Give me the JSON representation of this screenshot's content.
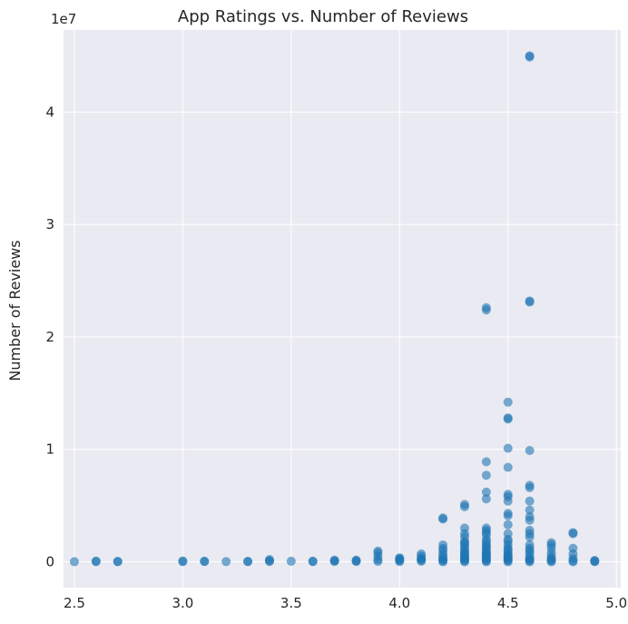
{
  "chart_data": {
    "type": "scatter",
    "title": "App Ratings vs. Number of Reviews",
    "xlabel": "",
    "ylabel": "Number of Reviews",
    "y_offset_label": "1e7",
    "xlim": [
      2.45,
      5.02
    ],
    "ylim": [
      -2300000,
      47300000
    ],
    "xticks": [
      2.5,
      3.0,
      3.5,
      4.0,
      4.5,
      5.0
    ],
    "xtick_labels": [
      "2.5",
      "3.0",
      "3.5",
      "4.0",
      "4.5",
      "5.0"
    ],
    "yticks": [
      0,
      10000000,
      20000000,
      30000000,
      40000000
    ],
    "ytick_labels": [
      "0",
      "1",
      "2",
      "3",
      "4"
    ],
    "grid": true,
    "background": "#eaeaf2",
    "grid_color": "#ffffff",
    "point_color": "#1f77b4",
    "point_alpha": 0.6,
    "series": [
      {
        "x": [
          2.5,
          2.6,
          2.6,
          2.7,
          2.7,
          3.0,
          3.0,
          3.1,
          3.1,
          3.2,
          3.3,
          3.3,
          3.4,
          3.4,
          3.4,
          3.5,
          3.6,
          3.6,
          3.7,
          3.7,
          3.7,
          3.8,
          3.8,
          3.8,
          3.9,
          3.9,
          3.9,
          3.9,
          3.9,
          4.0,
          4.0,
          4.0,
          4.0,
          4.0,
          4.1,
          4.1,
          4.1,
          4.1,
          4.1,
          4.1,
          4.2,
          4.2,
          4.2,
          4.2,
          4.2,
          4.2,
          4.2,
          4.2,
          4.2,
          4.2,
          4.2,
          4.3,
          4.3,
          4.3,
          4.3,
          4.3,
          4.3,
          4.3,
          4.3,
          4.3,
          4.3,
          4.3,
          4.3,
          4.3,
          4.3,
          4.3,
          4.3,
          4.3,
          4.3,
          4.3,
          4.4,
          4.4,
          4.4,
          4.4,
          4.4,
          4.4,
          4.4,
          4.4,
          4.4,
          4.4,
          4.4,
          4.4,
          4.4,
          4.4,
          4.4,
          4.4,
          4.4,
          4.4,
          4.4,
          4.4,
          4.4,
          4.4,
          4.4,
          4.4,
          4.4,
          4.4,
          4.5,
          4.5,
          4.5,
          4.5,
          4.5,
          4.5,
          4.5,
          4.5,
          4.5,
          4.5,
          4.5,
          4.5,
          4.5,
          4.5,
          4.5,
          4.5,
          4.5,
          4.5,
          4.5,
          4.5,
          4.5,
          4.5,
          4.5,
          4.5,
          4.5,
          4.5,
          4.6,
          4.6,
          4.6,
          4.6,
          4.6,
          4.6,
          4.6,
          4.6,
          4.6,
          4.6,
          4.6,
          4.6,
          4.6,
          4.6,
          4.6,
          4.6,
          4.6,
          4.6,
          4.6,
          4.6,
          4.6,
          4.6,
          4.6,
          4.7,
          4.7,
          4.7,
          4.7,
          4.7,
          4.7,
          4.7,
          4.7,
          4.7,
          4.8,
          4.8,
          4.8,
          4.8,
          4.8,
          4.8,
          4.8,
          4.9,
          4.9,
          4.9
        ],
        "y": [
          10000,
          20000,
          60000,
          10000,
          40000,
          20000,
          70000,
          30000,
          50000,
          20000,
          20000,
          40000,
          30000,
          100000,
          200000,
          50000,
          20000,
          60000,
          50000,
          150000,
          60000,
          30000,
          80000,
          150000,
          40000,
          200000,
          500000,
          800000,
          950000,
          30000,
          100000,
          200000,
          300000,
          350000,
          50000,
          150000,
          300000,
          500000,
          700000,
          250000,
          0,
          100000,
          200000,
          300000,
          500000,
          700000,
          1000000,
          1200000,
          1500000,
          3800000,
          3900000,
          0,
          100000,
          200000,
          300000,
          500000,
          700000,
          900000,
          1100000,
          1300000,
          1500000,
          1800000,
          2200000,
          2500000,
          3000000,
          4900000,
          5100000,
          1700000,
          800000,
          400000,
          0,
          100000,
          200000,
          300000,
          500000,
          700000,
          900000,
          1100000,
          1300000,
          1600000,
          2000000,
          2400000,
          2800000,
          3000000,
          5600000,
          6200000,
          7700000,
          8900000,
          22400000,
          22600000,
          600000,
          1400000,
          1800000,
          2600000,
          400000,
          800000,
          0,
          100000,
          200000,
          300000,
          500000,
          700000,
          900000,
          1200000,
          1500000,
          2000000,
          2500000,
          3300000,
          4100000,
          4300000,
          5400000,
          5800000,
          6000000,
          8400000,
          10100000,
          12700000,
          14200000,
          12800000,
          600000,
          1100000,
          1800000,
          400000,
          0,
          100000,
          200000,
          300000,
          500000,
          800000,
          1200000,
          1500000,
          2200000,
          2500000,
          2800000,
          3700000,
          4000000,
          4600000,
          5400000,
          6600000,
          6800000,
          9900000,
          23100000,
          23200000,
          44900000,
          45000000,
          1000000,
          0,
          100000,
          300000,
          500000,
          800000,
          1200000,
          1500000,
          1700000,
          200000,
          0,
          100000,
          300000,
          700000,
          1200000,
          2500000,
          2600000,
          10000,
          60000,
          120000
        ]
      }
    ]
  }
}
